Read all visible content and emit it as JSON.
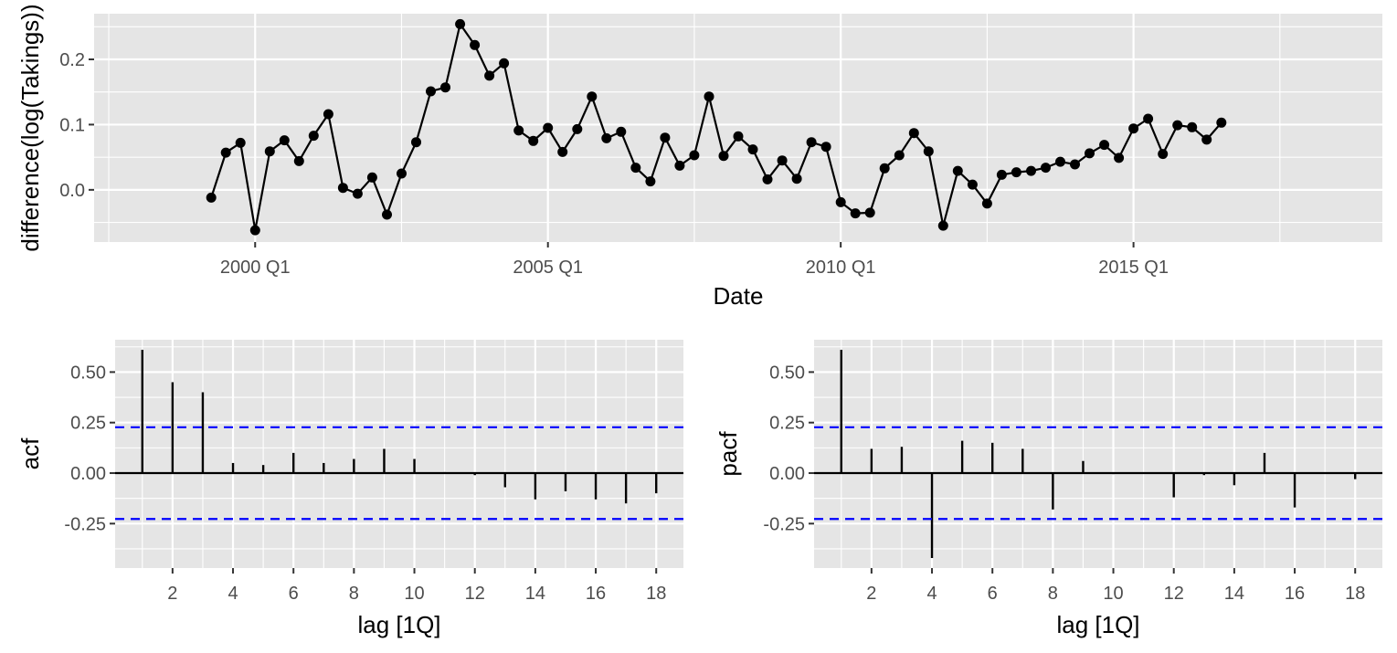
{
  "chart_data": [
    {
      "type": "line",
      "xlabel": "Date",
      "ylabel": "difference(log(Takings))",
      "xlim": [
        "1997 Q2",
        "2019 Q2"
      ],
      "ylim": [
        -0.08,
        0.27
      ],
      "x_ticks": [
        "2000 Q1",
        "2005 Q1",
        "2010 Q1",
        "2015 Q1"
      ],
      "y_ticks": [
        0.0,
        0.1,
        0.2
      ],
      "y_tick_labels": [
        "0.0",
        "0.1",
        "0.2"
      ],
      "grid": true,
      "start_quarter": "1999 Q2",
      "series": [
        {
          "values": [
            -0.012,
            0.057,
            0.072,
            -0.062,
            0.059,
            0.076,
            0.044,
            0.083,
            0.116,
            0.003,
            -0.006,
            0.019,
            -0.038,
            0.025,
            0.073,
            0.151,
            0.157,
            0.254,
            0.222,
            0.175,
            0.194,
            0.091,
            0.075,
            0.095,
            0.058,
            0.093,
            0.143,
            0.079,
            0.089,
            0.034,
            0.013,
            0.08,
            0.037,
            0.053,
            0.143,
            0.052,
            0.082,
            0.062,
            0.016,
            0.045,
            0.017,
            0.073,
            0.066,
            -0.019,
            -0.036,
            -0.035,
            0.033,
            0.053,
            0.087,
            0.059,
            -0.055,
            0.029,
            0.008,
            -0.021,
            0.023,
            0.027,
            0.029,
            0.034,
            0.043,
            0.039,
            0.056,
            0.069,
            0.049,
            0.094,
            0.109,
            0.055,
            0.099,
            0.096,
            0.077,
            0.103
          ]
        }
      ]
    },
    {
      "type": "bar",
      "xlabel": "lag [1Q]",
      "ylabel": "acf",
      "xlim": [
        0.1,
        18.9
      ],
      "ylim": [
        -0.47,
        0.66
      ],
      "x_ticks": [
        2,
        4,
        6,
        8,
        10,
        12,
        14,
        16,
        18
      ],
      "y_ticks": [
        -0.25,
        0.0,
        0.25,
        0.5
      ],
      "y_tick_labels": [
        "-0.25",
        "0.00",
        "0.25",
        "0.50"
      ],
      "ci": [
        -0.227,
        0.227
      ],
      "lags": [
        1,
        2,
        3,
        4,
        5,
        6,
        7,
        8,
        9,
        10,
        11,
        12,
        13,
        14,
        15,
        16,
        17,
        18
      ],
      "values": [
        0.61,
        0.45,
        0.4,
        0.05,
        0.04,
        0.1,
        0.05,
        0.07,
        0.12,
        0.07,
        0.005,
        -0.01,
        -0.07,
        -0.13,
        -0.09,
        -0.13,
        -0.15,
        -0.1
      ]
    },
    {
      "type": "bar",
      "xlabel": "lag [1Q]",
      "ylabel": "pacf",
      "xlim": [
        0.1,
        18.9
      ],
      "ylim": [
        -0.47,
        0.66
      ],
      "x_ticks": [
        2,
        4,
        6,
        8,
        10,
        12,
        14,
        16,
        18
      ],
      "y_ticks": [
        -0.25,
        0.0,
        0.25,
        0.5
      ],
      "y_tick_labels": [
        "-0.25",
        "0.00",
        "0.25",
        "0.50"
      ],
      "ci": [
        -0.227,
        0.227
      ],
      "lags": [
        1,
        2,
        3,
        4,
        5,
        6,
        7,
        8,
        9,
        10,
        11,
        12,
        13,
        14,
        15,
        16,
        17,
        18
      ],
      "values": [
        0.61,
        0.12,
        0.13,
        -0.42,
        0.16,
        0.15,
        0.12,
        -0.18,
        0.06,
        -0.005,
        0.0,
        -0.12,
        -0.01,
        -0.06,
        0.1,
        -0.17,
        0.0,
        -0.03
      ]
    }
  ]
}
